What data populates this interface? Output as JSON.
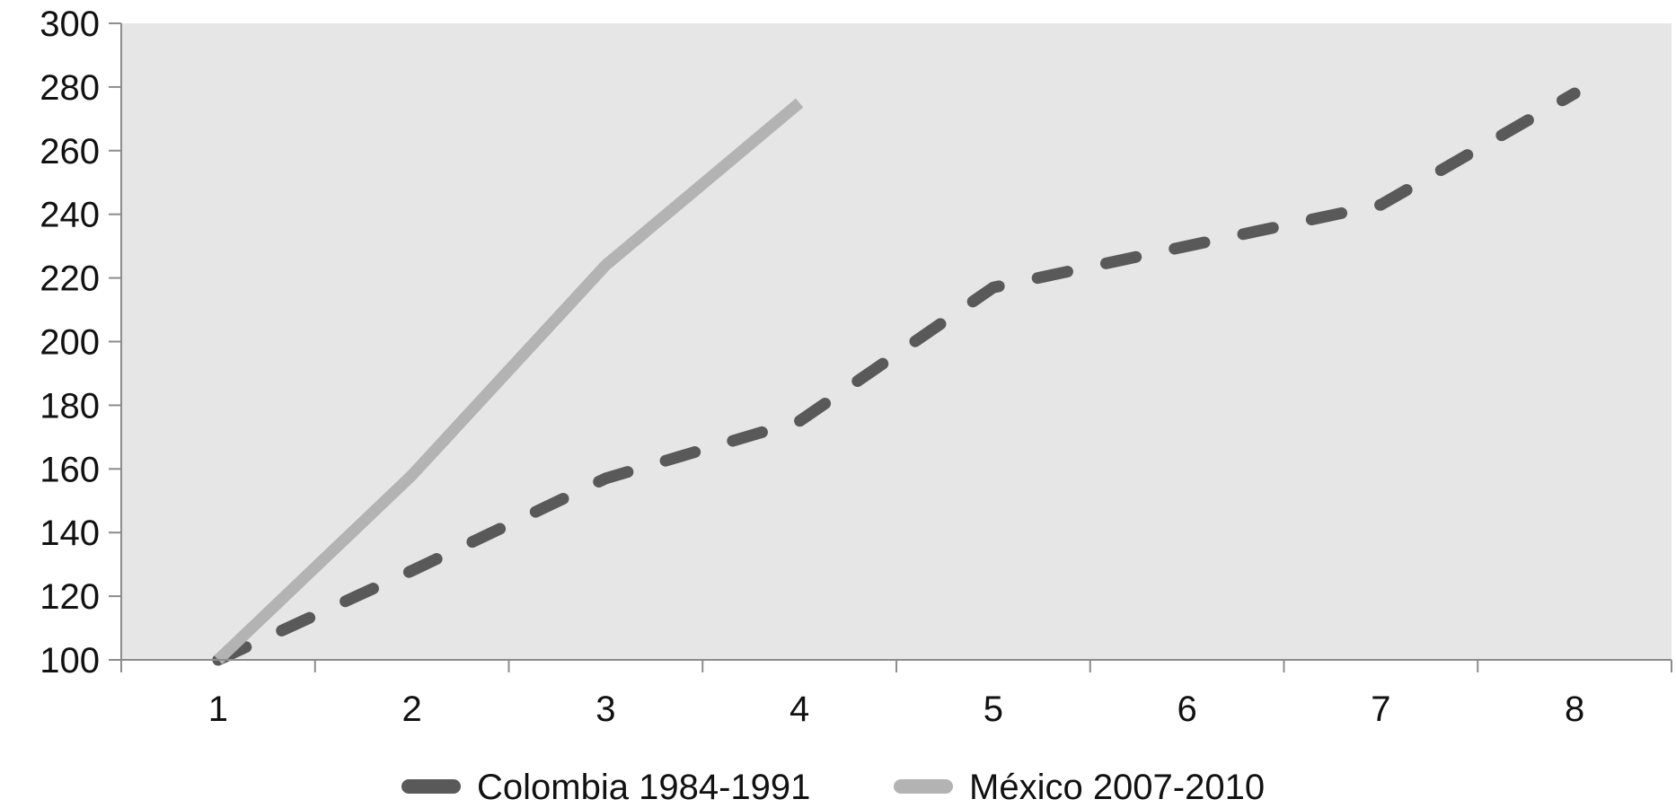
{
  "chart_data": {
    "type": "line",
    "title": "",
    "xlabel": "",
    "ylabel": "",
    "x": [
      1,
      2,
      3,
      4,
      5,
      6,
      7,
      8
    ],
    "x_tick_labels": [
      "1",
      "2",
      "3",
      "4",
      "5",
      "6",
      "7",
      "8"
    ],
    "y_tick_labels": [
      "100",
      "120",
      "140",
      "160",
      "180",
      "200",
      "220",
      "240",
      "260",
      "280",
      "300"
    ],
    "ylim": [
      100,
      300
    ],
    "xlim": [
      0.5,
      8.5
    ],
    "grid": false,
    "plot_background": "#e6e6e6",
    "legend_position": "bottom",
    "series": [
      {
        "name": "Colombia 1984-1991",
        "color": "#595959",
        "line_style": "dashed",
        "values": [
          100,
          128,
          157,
          175,
          217,
          230,
          243,
          278
        ]
      },
      {
        "name": "México 2007-2010",
        "color": "#b3b3b3",
        "line_style": "solid",
        "values": [
          100,
          158,
          224,
          275,
          null,
          null,
          null,
          null
        ]
      }
    ]
  }
}
